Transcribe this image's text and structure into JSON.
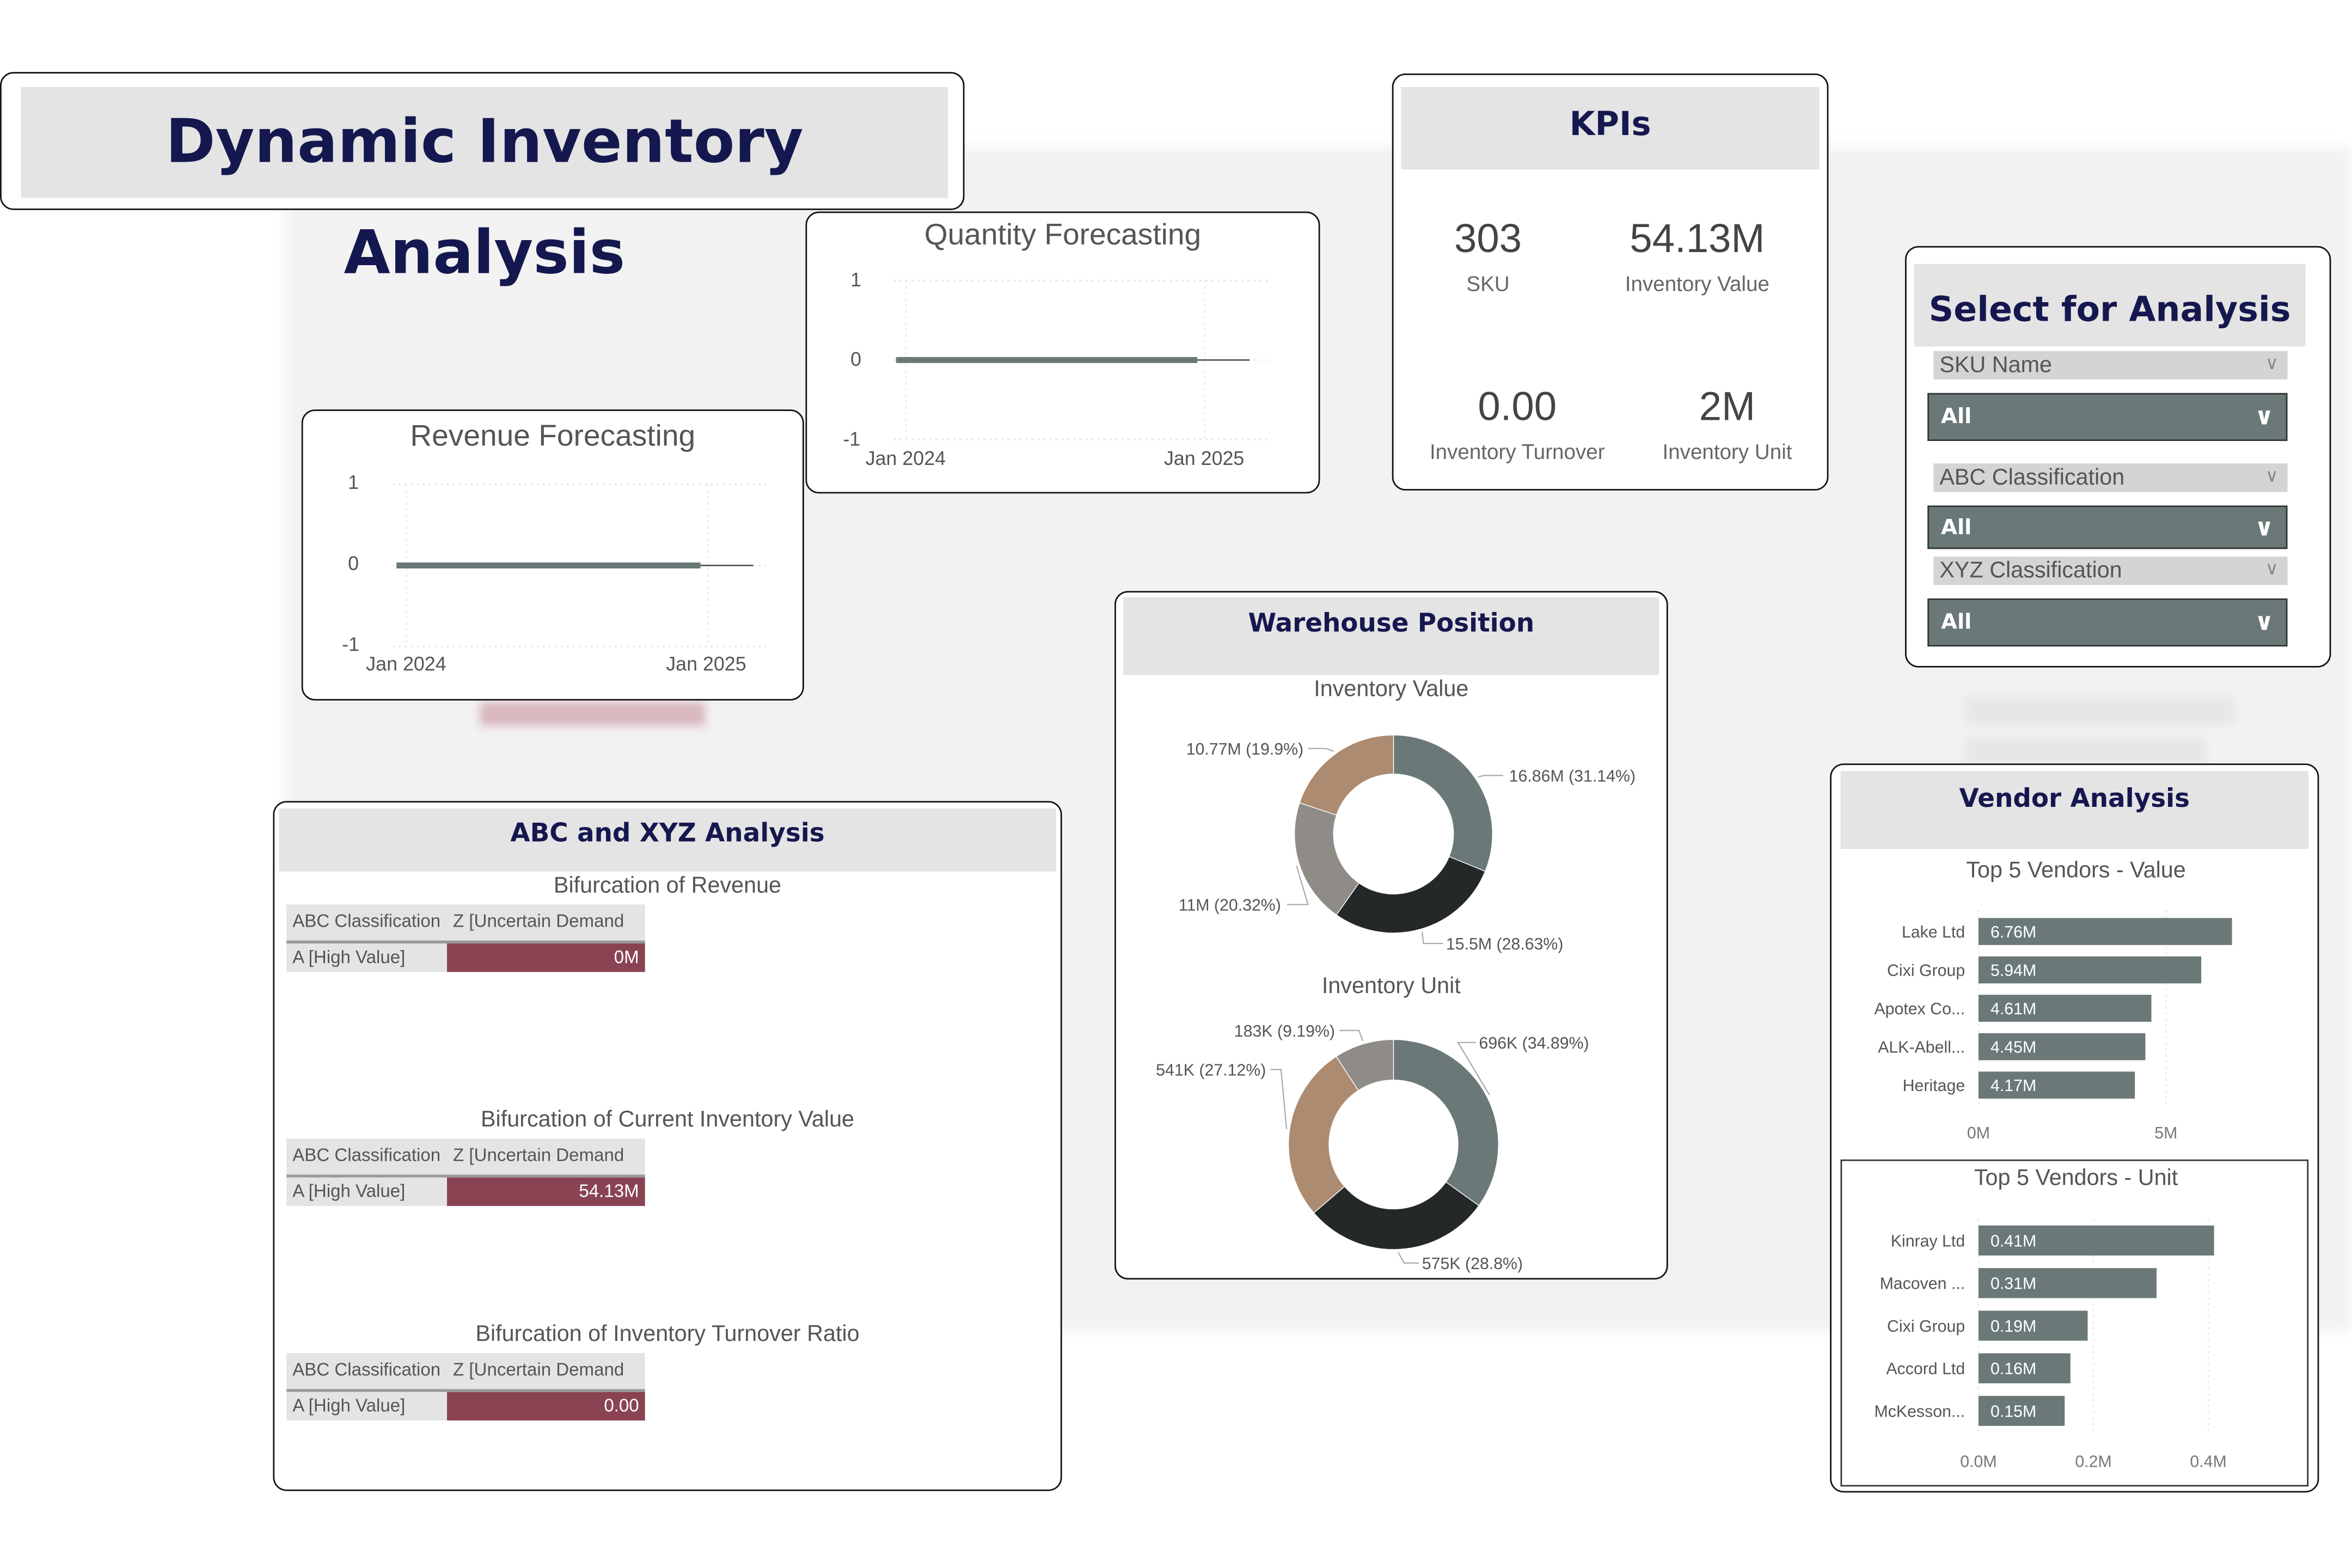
{
  "title": "Dynamic Inventory Analysis",
  "quantity_forecast": {
    "title": "Quantity Forecasting",
    "y_ticks": [
      "1",
      "0",
      "-1"
    ],
    "x_ticks": [
      "Jan 2024",
      "Jan 2025"
    ]
  },
  "revenue_forecast": {
    "title": "Revenue Forecasting",
    "y_ticks": [
      "1",
      "0",
      "-1"
    ],
    "x_ticks": [
      "Jan 2024",
      "Jan 2025"
    ]
  },
  "kpis": {
    "title": "KPIs",
    "items": [
      {
        "value": "303",
        "label": "SKU"
      },
      {
        "value": "54.13M",
        "label": "Inventory Value"
      },
      {
        "value": "0.00",
        "label": "Inventory Turnover"
      },
      {
        "value": "2M",
        "label": "Inventory Unit"
      }
    ]
  },
  "select": {
    "title": "Select for Analysis",
    "filters": [
      {
        "label": "SKU Name",
        "value": "All"
      },
      {
        "label": "ABC Classification",
        "value": "All"
      },
      {
        "label": "XYZ Classification",
        "value": "All"
      }
    ]
  },
  "warehouse": {
    "title": "Warehouse Position",
    "value_title": "Inventory Value",
    "unit_title": "Inventory Unit"
  },
  "abc": {
    "title": "ABC and XYZ Analysis",
    "tables": [
      {
        "title": "Bifurcation of Revenue",
        "col1": "ABC Classification",
        "col2": "Z [Uncertain Demand",
        "row": "A [High Value]",
        "value": "0M"
      },
      {
        "title": "Bifurcation of Current Inventory Value",
        "col1": "ABC Classification",
        "col2": "Z [Uncertain Demand",
        "row": "A [High Value]",
        "value": "54.13M"
      },
      {
        "title": "Bifurcation of Inventory Turnover Ratio",
        "col1": "ABC Classification",
        "col2": "Z [Uncertain Demand",
        "row": "A [High Value]",
        "value": "0.00"
      }
    ]
  },
  "vendor": {
    "title": "Vendor Analysis"
  },
  "colors": {
    "navy": "#15184f",
    "slate": "#6b7878",
    "dark": "#252829",
    "gray": "#8f8c87",
    "tan": "#ad8b70",
    "maroon": "#8a4353"
  },
  "chart_data": [
    {
      "id": "quantity",
      "type": "line",
      "title": "Quantity Forecasting",
      "ylim": [
        -1,
        1
      ],
      "x_ticks": [
        "Jan 2024",
        "Jan 2025"
      ],
      "series": [
        {
          "name": "actual",
          "x_months_from_jan2024": [
            0,
            11.7
          ],
          "y": [
            0,
            0
          ]
        },
        {
          "name": "forecast",
          "x_months_from_jan2024": [
            11.7,
            13.8
          ],
          "y": [
            0,
            0
          ]
        }
      ]
    },
    {
      "id": "revenue",
      "type": "line",
      "title": "Revenue Forecasting",
      "ylim": [
        -1,
        1
      ],
      "x_ticks": [
        "Jan 2024",
        "Jan 2025"
      ],
      "series": [
        {
          "name": "actual",
          "x_months_from_jan2024": [
            0,
            11.7
          ],
          "y": [
            0,
            0
          ]
        },
        {
          "name": "forecast",
          "x_months_from_jan2024": [
            11.7,
            13.8
          ],
          "y": [
            0,
            0
          ]
        }
      ]
    },
    {
      "id": "inv_value",
      "type": "pie",
      "title": "Inventory Value",
      "slices": [
        {
          "value": 16.86,
          "label": "16.86M (31.14%)",
          "color": "#6b7878"
        },
        {
          "value": 15.5,
          "label": "15.5M (28.63%)",
          "color": "#252829"
        },
        {
          "value": 11,
          "label": "11M (20.32%)",
          "color": "#8f8c87"
        },
        {
          "value": 10.77,
          "label": "10.77M (19.9%)",
          "color": "#ad8b70"
        }
      ]
    },
    {
      "id": "inv_unit",
      "type": "pie",
      "title": "Inventory Unit",
      "slices": [
        {
          "value": 696,
          "label": "696K (34.89%)",
          "color": "#6b7878"
        },
        {
          "value": 575,
          "label": "575K (28.8%)",
          "color": "#252829"
        },
        {
          "value": 541,
          "label": "541K (27.12%)",
          "color": "#ad8b70"
        },
        {
          "value": 183,
          "label": "183K (9.19%)",
          "color": "#8f8c87"
        }
      ]
    },
    {
      "id": "vendor_value",
      "type": "bar",
      "title": "Top 5 Vendors - Value",
      "xlim": [
        0,
        7
      ],
      "x_ticks": [
        "0M",
        "5M"
      ],
      "categories": [
        "Lake Ltd",
        "Cixi Group",
        "Apotex Co...",
        "ALK-Abell...",
        "Heritage"
      ],
      "values": [
        6.76,
        5.94,
        4.61,
        4.45,
        4.17
      ],
      "labels": [
        "6.76M",
        "5.94M",
        "4.61M",
        "4.45M",
        "4.17M"
      ]
    },
    {
      "id": "vendor_unit",
      "type": "bar",
      "title": "Top 5 Vendors - Unit",
      "xlim": [
        0,
        0.45
      ],
      "x_ticks": [
        "0.0M",
        "0.2M",
        "0.4M"
      ],
      "categories": [
        "Kinray Ltd",
        "Macoven ...",
        "Cixi Group",
        "Accord Ltd",
        "McKesson..."
      ],
      "values": [
        0.41,
        0.31,
        0.19,
        0.16,
        0.15
      ],
      "labels": [
        "0.41M",
        "0.31M",
        "0.19M",
        "0.16M",
        "0.15M"
      ]
    }
  ]
}
